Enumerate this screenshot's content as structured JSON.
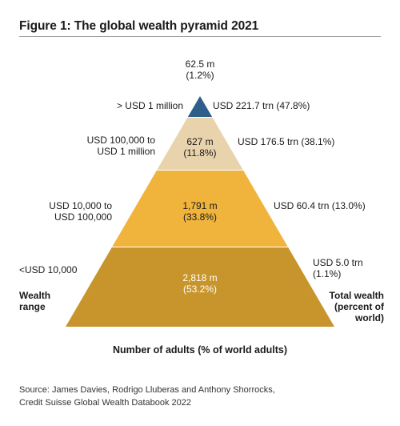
{
  "figure_title": "Figure 1: The global wealth pyramid 2021",
  "source_lines": [
    "Source: James Davies, Rodrigo Lluberas and Anthony Shorrocks,",
    "Credit Suisse Global Wealth Databook 2022"
  ],
  "chart_data": {
    "type": "pyramid",
    "title": "Figure 1: The global wealth pyramid 2021",
    "xlabel": "Number of adults (% of world adults)",
    "left_axis_label": [
      "Wealth",
      "range"
    ],
    "right_axis_label": [
      "Total wealth",
      "(percent of",
      "world)"
    ],
    "tiers": [
      {
        "range_label": [
          "> USD 1 million"
        ],
        "adults_label": [
          "62.5 m",
          "(1.2%)"
        ],
        "adults_millions": 62.5,
        "adults_pct": 1.2,
        "wealth_label": [
          "USD 221.7 trn (47.8%)"
        ],
        "wealth_trn": 221.7,
        "wealth_pct": 47.8,
        "color": "#2e5f8a"
      },
      {
        "range_label": [
          "USD 100,000 to",
          "USD 1 million"
        ],
        "adults_label": [
          "627 m",
          "(11.8%)"
        ],
        "adults_millions": 627,
        "adults_pct": 11.8,
        "wealth_label": [
          "USD 176.5 trn (38.1%)"
        ],
        "wealth_trn": 176.5,
        "wealth_pct": 38.1,
        "color": "#e8d3ad"
      },
      {
        "range_label": [
          "USD 10,000 to",
          "USD 100,000"
        ],
        "adults_label": [
          "1,791 m",
          "(33.8%)"
        ],
        "adults_millions": 1791,
        "adults_pct": 33.8,
        "wealth_label": [
          "USD 60.4 trn (13.0%)"
        ],
        "wealth_trn": 60.4,
        "wealth_pct": 13.0,
        "color": "#f0b43c"
      },
      {
        "range_label": [
          "<USD 10,000"
        ],
        "adults_label": [
          "2,818 m",
          "(53.2%)"
        ],
        "adults_millions": 2818,
        "adults_pct": 53.2,
        "wealth_label": [
          "USD 5.0 trn",
          "(1.1%)"
        ],
        "wealth_trn": 5.0,
        "wealth_pct": 1.1,
        "color": "#c8952c"
      }
    ]
  }
}
